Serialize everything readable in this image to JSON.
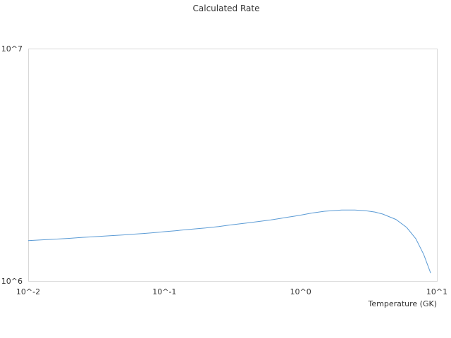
{
  "chart_data": {
    "type": "line",
    "title": "Calculated Rate",
    "xlabel": "Temperature (GK)",
    "ylabel": "",
    "x_scale": "log",
    "y_scale": "log",
    "xlim": [
      0.01,
      10
    ],
    "ylim": [
      1000000,
      10000000
    ],
    "grid": false,
    "x_tick_labels": [
      "10^-2",
      "10^-1",
      "10^0",
      "10^1"
    ],
    "y_tick_labels": [
      "10^6",
      "10^7"
    ],
    "series": [
      {
        "color": "#5b9bd5",
        "x": [
          0.01,
          0.012,
          0.015,
          0.02,
          0.025,
          0.03,
          0.04,
          0.05,
          0.06,
          0.07,
          0.08,
          0.09,
          0.1,
          0.12,
          0.15,
          0.2,
          0.25,
          0.3,
          0.4,
          0.5,
          0.6,
          0.7,
          0.8,
          0.9,
          1.0,
          1.2,
          1.5,
          2.0,
          2.5,
          3.0,
          3.5,
          4.0,
          5.0,
          6.0,
          7.0,
          8.0,
          9.0
        ],
        "y": [
          1490000,
          1500000,
          1510000,
          1525000,
          1540000,
          1550000,
          1565000,
          1578000,
          1590000,
          1600000,
          1610000,
          1620000,
          1630000,
          1645000,
          1665000,
          1690000,
          1715000,
          1740000,
          1775000,
          1805000,
          1830000,
          1855000,
          1880000,
          1900000,
          1920000,
          1960000,
          1995000,
          2020000,
          2020000,
          2005000,
          1980000,
          1940000,
          1840000,
          1700000,
          1520000,
          1300000,
          1080000
        ]
      }
    ]
  }
}
